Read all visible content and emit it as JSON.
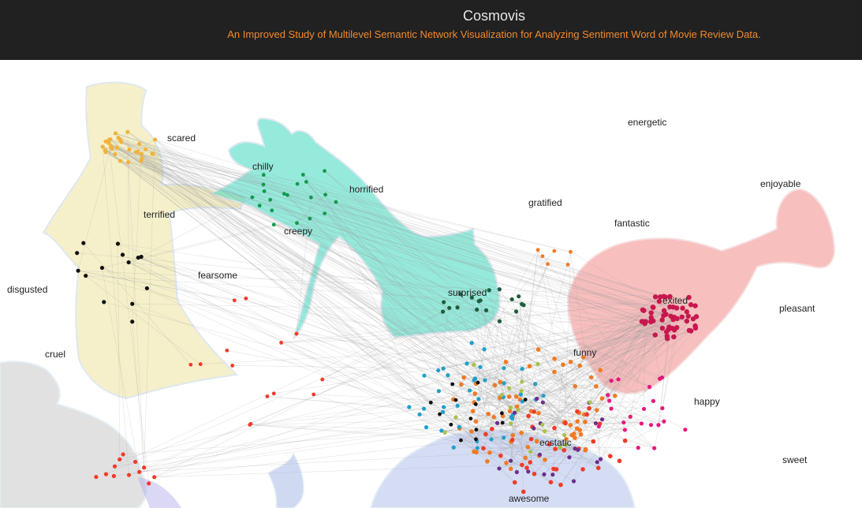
{
  "app": {
    "title": "Cosmovis",
    "subtitle": "An Improved Study of Multilevel Semantic Network Visualization for Analyzing Sentiment Word of Movie Review Data."
  },
  "colors": {
    "header_bg": "#212121",
    "subtitle": "#f0892c",
    "edge": "#9a9a9a",
    "ghost_yellow": "#efe6a6",
    "ghost_green": "#3fd9c0",
    "ghost_red": "#f28a8a",
    "ghost_gray": "#c8c8c8",
    "ghost_blue": "#9fb3e6"
  },
  "words": [
    "scared",
    "chilly",
    "horrified",
    "terrified",
    "creepy",
    "fearsome",
    "disgusted",
    "cruel",
    "energetic",
    "gratified",
    "enjoyable",
    "fantastic",
    "exited",
    "surprised",
    "pleasant",
    "funny",
    "happy",
    "ecstatic",
    "sweet",
    "awesome"
  ]
}
